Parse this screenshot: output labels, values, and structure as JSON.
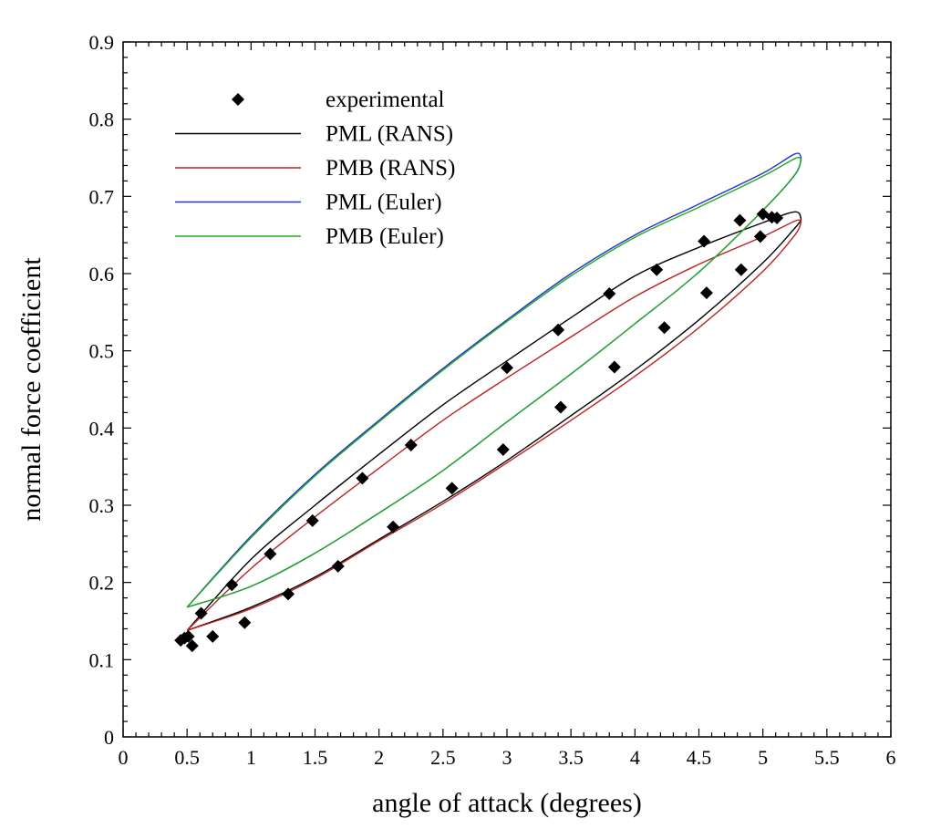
{
  "chart_data": {
    "type": "scatter",
    "title": "",
    "xlabel": "angle of attack (degrees)",
    "ylabel": "normal force coefficient",
    "xlim": [
      0,
      6
    ],
    "ylim": [
      0,
      0.9
    ],
    "xticks": [
      "0",
      "0.5",
      "1",
      "1.5",
      "2",
      "2.5",
      "3",
      "3.5",
      "4",
      "4.5",
      "5",
      "5.5",
      "6"
    ],
    "yticks": [
      "0",
      "0.1",
      "0.2",
      "0.3",
      "0.4",
      "0.5",
      "0.6",
      "0.7",
      "0.8",
      "0.9"
    ],
    "grid": false,
    "legend_position": "top-left",
    "series": [
      {
        "name": "experimental",
        "kind": "markers",
        "marker": "diamond",
        "color": "#000000",
        "points": [
          [
            0.45,
            0.125
          ],
          [
            0.48,
            0.128
          ],
          [
            0.51,
            0.13
          ],
          [
            0.54,
            0.118
          ],
          [
            0.61,
            0.16
          ],
          [
            0.7,
            0.13
          ],
          [
            0.85,
            0.197
          ],
          [
            0.95,
            0.148
          ],
          [
            1.15,
            0.237
          ],
          [
            1.29,
            0.185
          ],
          [
            1.48,
            0.28
          ],
          [
            1.68,
            0.221
          ],
          [
            1.87,
            0.335
          ],
          [
            2.11,
            0.272
          ],
          [
            2.25,
            0.378
          ],
          [
            2.57,
            0.322
          ],
          [
            3.0,
            0.478
          ],
          [
            2.97,
            0.372
          ],
          [
            3.4,
            0.527
          ],
          [
            3.42,
            0.427
          ],
          [
            3.8,
            0.574
          ],
          [
            3.84,
            0.479
          ],
          [
            4.17,
            0.605
          ],
          [
            4.23,
            0.53
          ],
          [
            4.54,
            0.642
          ],
          [
            4.56,
            0.575
          ],
          [
            4.82,
            0.669
          ],
          [
            4.83,
            0.605
          ],
          [
            4.98,
            0.648
          ],
          [
            5.0,
            0.677
          ],
          [
            5.07,
            0.673
          ],
          [
            5.11,
            0.672
          ]
        ]
      },
      {
        "name": "PML (RANS)",
        "kind": "loop",
        "color": "#000000",
        "upper": [
          [
            0.5,
            0.138
          ],
          [
            1.0,
            0.23
          ],
          [
            1.5,
            0.3
          ],
          [
            2.0,
            0.366
          ],
          [
            2.5,
            0.43
          ],
          [
            3.0,
            0.487
          ],
          [
            3.5,
            0.543
          ],
          [
            4.0,
            0.597
          ],
          [
            4.5,
            0.634
          ],
          [
            5.0,
            0.666
          ],
          [
            5.25,
            0.68
          ],
          [
            5.3,
            0.67
          ]
        ],
        "lower": [
          [
            0.5,
            0.138
          ],
          [
            1.0,
            0.168
          ],
          [
            1.5,
            0.207
          ],
          [
            2.0,
            0.256
          ],
          [
            2.5,
            0.305
          ],
          [
            3.0,
            0.358
          ],
          [
            3.5,
            0.416
          ],
          [
            4.0,
            0.475
          ],
          [
            4.5,
            0.54
          ],
          [
            5.0,
            0.614
          ],
          [
            5.25,
            0.659
          ],
          [
            5.3,
            0.67
          ]
        ]
      },
      {
        "name": "PMB (RANS)",
        "kind": "loop",
        "color": "#bb2222",
        "upper": [
          [
            0.5,
            0.138
          ],
          [
            1.0,
            0.218
          ],
          [
            1.5,
            0.285
          ],
          [
            2.0,
            0.348
          ],
          [
            2.5,
            0.41
          ],
          [
            3.0,
            0.465
          ],
          [
            3.5,
            0.518
          ],
          [
            4.0,
            0.57
          ],
          [
            4.5,
            0.612
          ],
          [
            5.0,
            0.648
          ],
          [
            5.25,
            0.668
          ],
          [
            5.3,
            0.668
          ]
        ],
        "lower": [
          [
            0.5,
            0.138
          ],
          [
            1.0,
            0.166
          ],
          [
            1.5,
            0.205
          ],
          [
            2.0,
            0.254
          ],
          [
            2.5,
            0.302
          ],
          [
            3.0,
            0.355
          ],
          [
            3.5,
            0.41
          ],
          [
            4.0,
            0.467
          ],
          [
            4.5,
            0.53
          ],
          [
            5.0,
            0.603
          ],
          [
            5.25,
            0.65
          ],
          [
            5.3,
            0.668
          ]
        ]
      },
      {
        "name": "PML (Euler)",
        "kind": "loop",
        "color": "#2233cc",
        "upper": [
          [
            0.5,
            0.168
          ],
          [
            1.0,
            0.26
          ],
          [
            1.5,
            0.34
          ],
          [
            2.0,
            0.41
          ],
          [
            2.5,
            0.477
          ],
          [
            3.0,
            0.54
          ],
          [
            3.5,
            0.6
          ],
          [
            4.0,
            0.65
          ],
          [
            4.5,
            0.69
          ],
          [
            5.0,
            0.73
          ],
          [
            5.25,
            0.755
          ],
          [
            5.3,
            0.75
          ]
        ],
        "lower": [
          [
            0.5,
            0.168
          ],
          [
            1.0,
            0.195
          ],
          [
            1.5,
            0.238
          ],
          [
            2.0,
            0.29
          ],
          [
            2.5,
            0.345
          ],
          [
            3.0,
            0.408
          ],
          [
            3.5,
            0.47
          ],
          [
            4.0,
            0.535
          ],
          [
            4.5,
            0.602
          ],
          [
            5.0,
            0.682
          ],
          [
            5.25,
            0.728
          ],
          [
            5.3,
            0.75
          ]
        ]
      },
      {
        "name": "PMB (Euler)",
        "kind": "loop",
        "color": "#22aa22",
        "upper": [
          [
            0.5,
            0.168
          ],
          [
            1.0,
            0.258
          ],
          [
            1.5,
            0.338
          ],
          [
            2.0,
            0.408
          ],
          [
            2.5,
            0.475
          ],
          [
            3.0,
            0.538
          ],
          [
            3.5,
            0.597
          ],
          [
            4.0,
            0.647
          ],
          [
            4.5,
            0.686
          ],
          [
            5.0,
            0.726
          ],
          [
            5.25,
            0.749
          ],
          [
            5.3,
            0.748
          ]
        ],
        "lower": [
          [
            0.5,
            0.168
          ],
          [
            1.0,
            0.195
          ],
          [
            1.5,
            0.238
          ],
          [
            2.0,
            0.29
          ],
          [
            2.5,
            0.345
          ],
          [
            3.0,
            0.408
          ],
          [
            3.5,
            0.47
          ],
          [
            4.0,
            0.535
          ],
          [
            4.5,
            0.602
          ],
          [
            5.0,
            0.682
          ],
          [
            5.25,
            0.728
          ],
          [
            5.3,
            0.748
          ]
        ]
      }
    ]
  }
}
